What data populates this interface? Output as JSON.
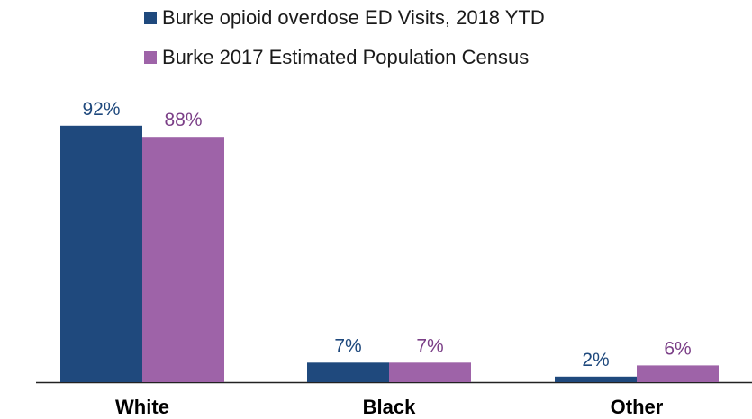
{
  "chart_data": {
    "type": "bar",
    "categories": [
      "White",
      "Black",
      "Other"
    ],
    "series": [
      {
        "name": "Burke opioid overdose ED Visits, 2018 YTD",
        "values": [
          92,
          7,
          2
        ],
        "labels": [
          "92%",
          "7%",
          "2%"
        ],
        "color": "#1f497d"
      },
      {
        "name": "Burke 2017 Estimated Population Census",
        "values": [
          88,
          7,
          6
        ],
        "labels": [
          "88%",
          "7%",
          "6%"
        ],
        "color": "#9e63a8"
      }
    ],
    "ylim": [
      0,
      100
    ],
    "grid": false,
    "legend_position": "top",
    "label_colors": [
      "#1f497d",
      "#7b3f87"
    ]
  }
}
